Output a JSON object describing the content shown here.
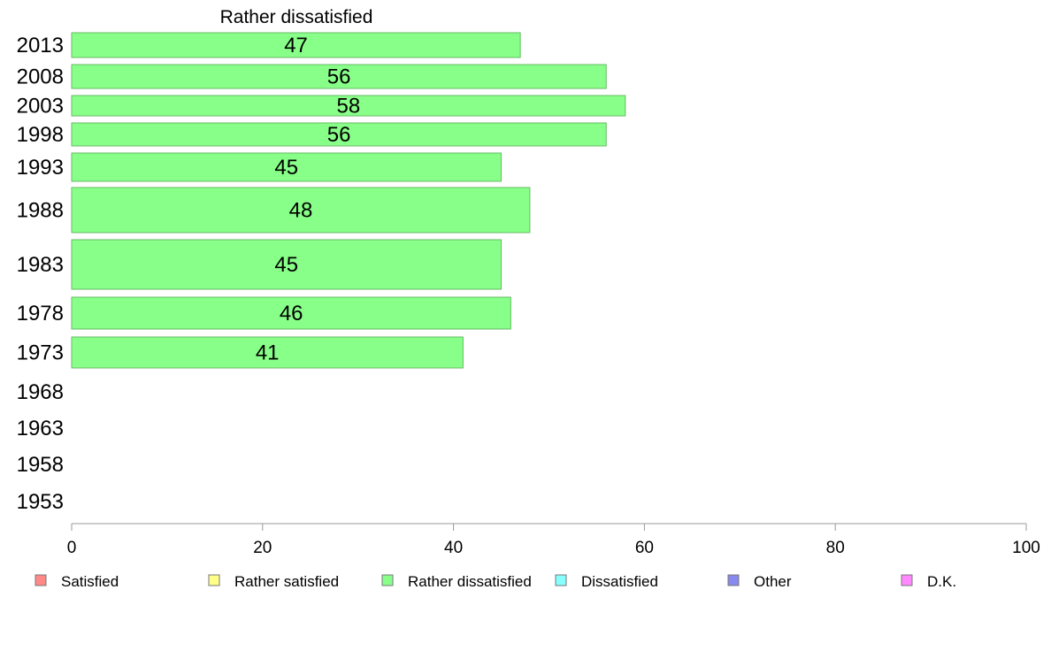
{
  "chart_data": {
    "type": "bar",
    "orientation": "horizontal",
    "title": "Rather dissatisfied",
    "categories": [
      "2013",
      "2008",
      "2003",
      "1998",
      "1993",
      "1988",
      "1983",
      "1978",
      "1973",
      "1968",
      "1963",
      "1958",
      "1953"
    ],
    "series": [
      {
        "name": "Rather dissatisfied",
        "values": [
          47,
          56,
          58,
          56,
          45,
          48,
          45,
          46,
          41,
          null,
          null,
          null,
          null
        ],
        "color": "#88ff88"
      }
    ],
    "data_labels": [
      "47",
      "56",
      "58",
      "56",
      "45",
      "48",
      "45",
      "46",
      "41",
      "",
      "",
      "",
      ""
    ],
    "xlim": [
      0,
      100
    ],
    "xticks": [
      "0",
      "20",
      "40",
      "60",
      "80",
      "100"
    ],
    "grid": false,
    "legend_position": "bottom",
    "legend": [
      {
        "label": "Satisfied",
        "color": "#ff8888"
      },
      {
        "label": "Rather satisfied",
        "color": "#ffff88"
      },
      {
        "label": "Rather dissatisfied",
        "color": "#88ff88"
      },
      {
        "label": "Dissatisfied",
        "color": "#88ffff"
      },
      {
        "label": "Other",
        "color": "#8888ee"
      },
      {
        "label": "D.K.",
        "color": "#ff88ff"
      }
    ]
  }
}
